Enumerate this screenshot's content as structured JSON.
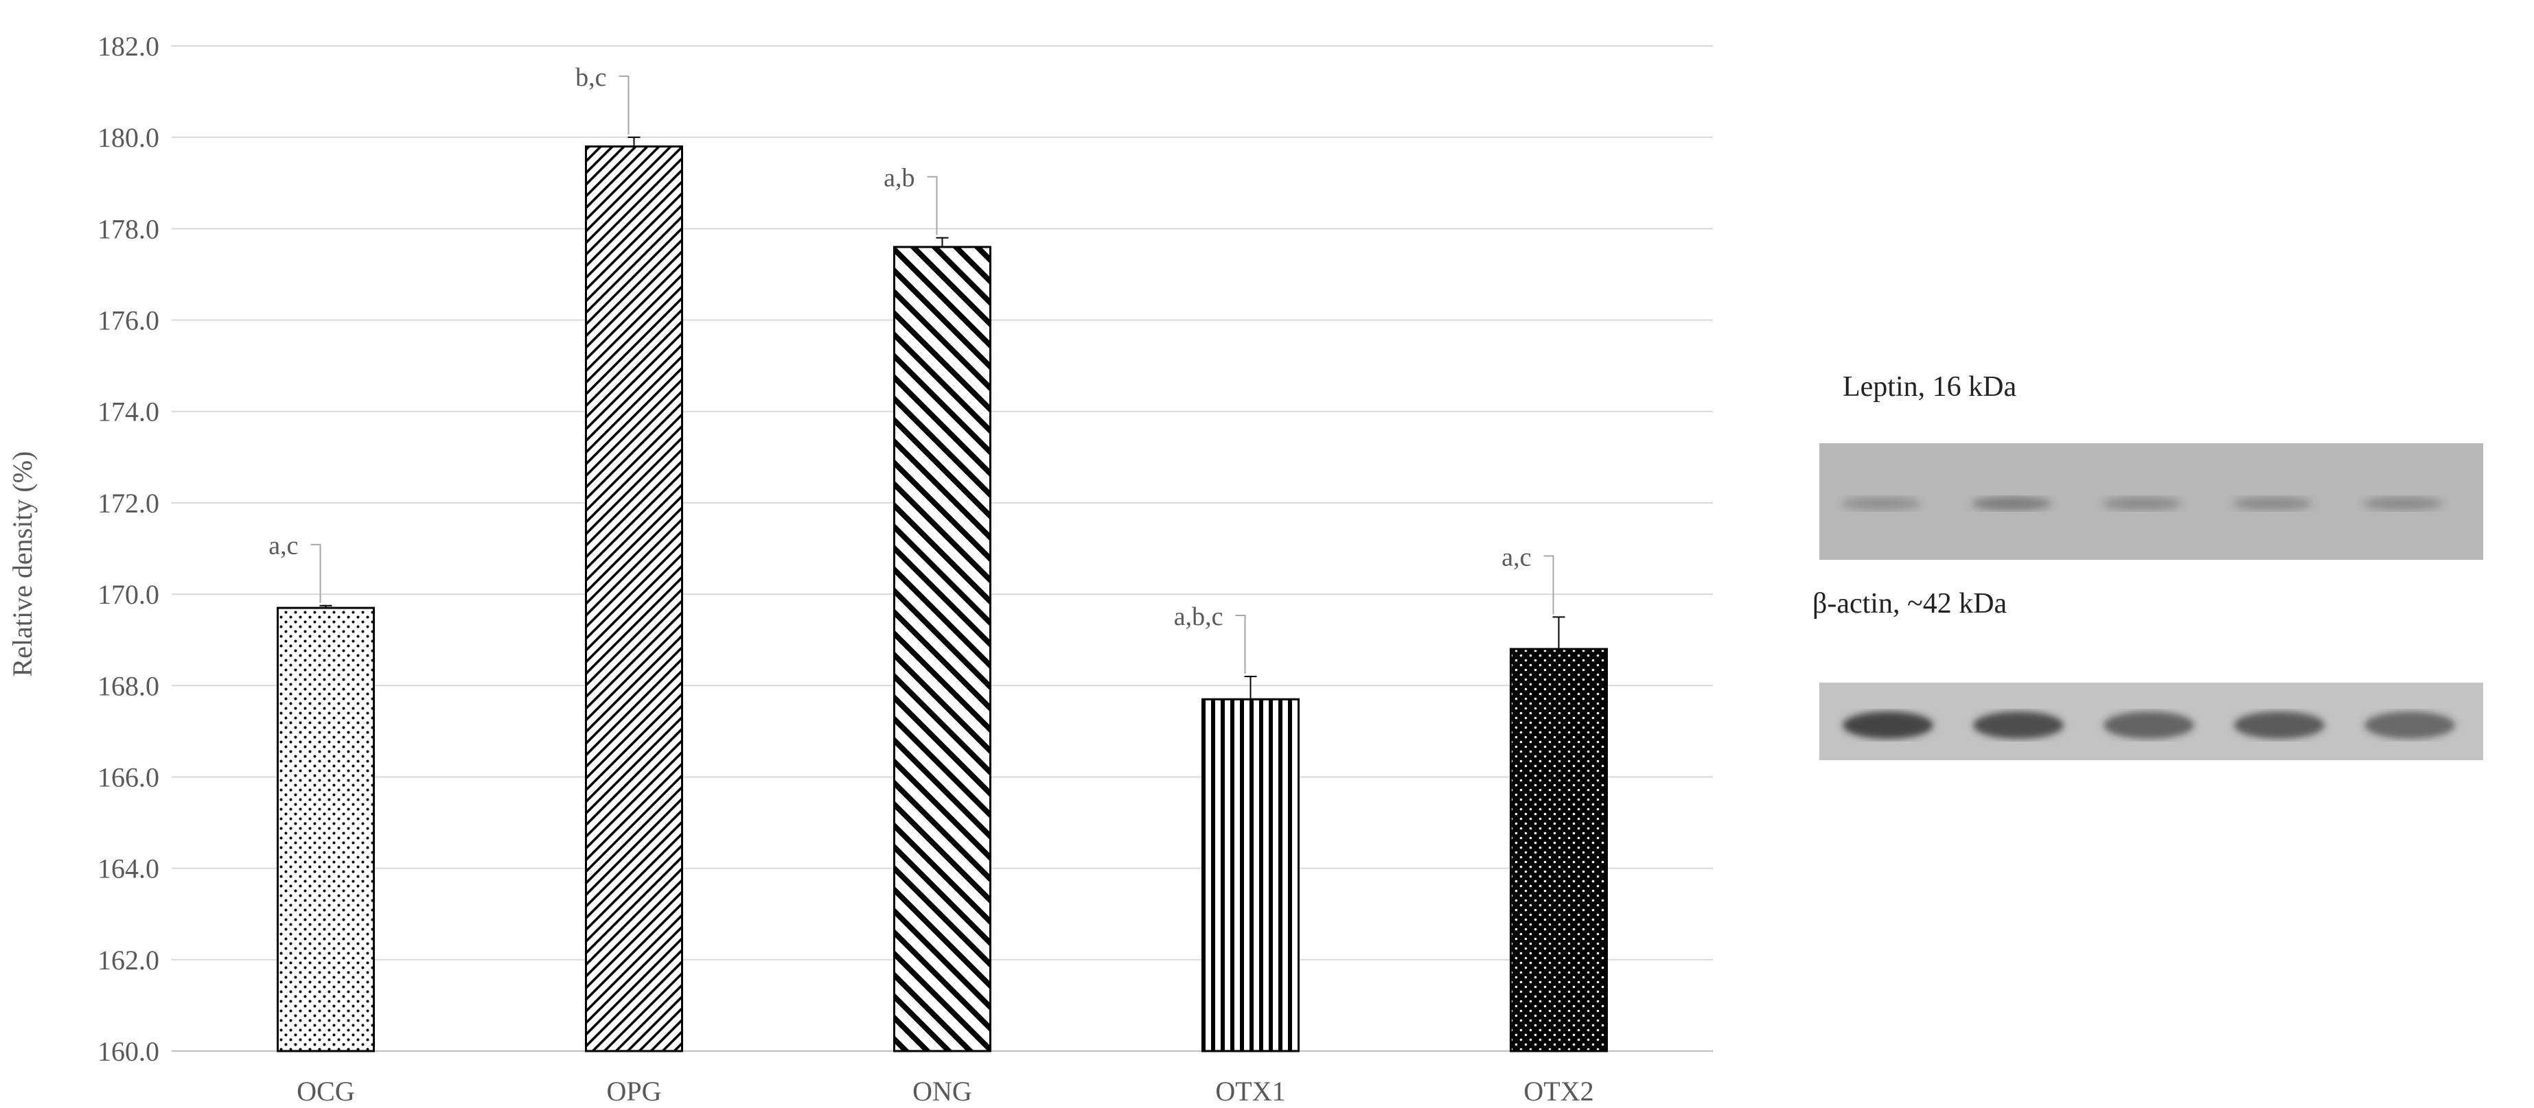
{
  "chart_data": {
    "type": "bar",
    "title": "",
    "xlabel": "",
    "ylabel": "Relative density (%)",
    "ylim": [
      160.0,
      182.0
    ],
    "yticks": [
      "160.0",
      "162.0",
      "164.0",
      "166.0",
      "168.0",
      "170.0",
      "172.0",
      "174.0",
      "176.0",
      "178.0",
      "180.0",
      "182.0"
    ],
    "grid": true,
    "categories": [
      "OCG",
      "OPG",
      "ONG",
      "OTX1",
      "OTX2"
    ],
    "values": [
      169.7,
      179.8,
      177.6,
      167.7,
      168.8
    ],
    "errors": [
      0.05,
      0.2,
      0.2,
      0.5,
      0.7
    ],
    "annotations": [
      "a,c",
      "b,c",
      "a,b",
      "a,b,c",
      "a,c"
    ],
    "patterns": [
      "sparse-dots",
      "dense-forward-diagonal",
      "wide-backward-diagonal",
      "vertical-stripes",
      "black-with-white-dots"
    ]
  },
  "blot": {
    "leptin_label": "Leptin, 16 kDa",
    "actin_label": "β-actin, ~42 kDa",
    "lanes": 5
  },
  "colors": {
    "grid": "#d9d9d9",
    "axis_text": "#595959",
    "bar_edge": "#000000",
    "leptin_bg": "#b9b9b9",
    "actin_bg": "#c4c4c4"
  }
}
